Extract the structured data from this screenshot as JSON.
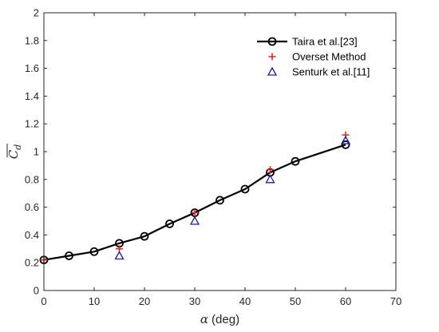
{
  "chart_data": {
    "type": "line",
    "xlabel_symbol": "α",
    "xlabel_unit": "(deg)",
    "ylabel_base": "C",
    "ylabel_sub": "d",
    "xlim": [
      0,
      70
    ],
    "ylim": [
      0,
      2
    ],
    "xticks": [
      "0",
      "10",
      "20",
      "30",
      "40",
      "50",
      "60",
      "70"
    ],
    "yticks": [
      "0",
      "0.2",
      "0.4",
      "0.6",
      "0.8",
      "1",
      "1.2",
      "1.4",
      "1.6",
      "1.8",
      "2"
    ],
    "xtick_values": [
      0,
      10,
      20,
      30,
      40,
      50,
      60,
      70
    ],
    "ytick_values": [
      0,
      0.2,
      0.4,
      0.6,
      0.8,
      1,
      1.2,
      1.4,
      1.6,
      1.8,
      2
    ],
    "grid": false,
    "legend_position": "top-right",
    "series": [
      {
        "name": "Taira et al.[23]",
        "marker": "circle",
        "line": true,
        "color": "#000000",
        "x": [
          0,
          5,
          10,
          15,
          20,
          25,
          30,
          35,
          40,
          45,
          50,
          60
        ],
        "y": [
          0.22,
          0.25,
          0.28,
          0.34,
          0.39,
          0.48,
          0.56,
          0.65,
          0.73,
          0.85,
          0.93,
          1.05
        ]
      },
      {
        "name": "Overset Method",
        "marker": "plus",
        "line": false,
        "color": "#e8201c",
        "x": [
          0,
          15,
          30,
          45,
          60
        ],
        "y": [
          0.22,
          0.3,
          0.56,
          0.87,
          1.12
        ]
      },
      {
        "name": "Senturk et al.[11]",
        "marker": "triangle",
        "line": false,
        "color": "#1a1ab4",
        "x": [
          15,
          30,
          45,
          60
        ],
        "y": [
          0.25,
          0.5,
          0.8,
          1.08
        ]
      }
    ]
  }
}
